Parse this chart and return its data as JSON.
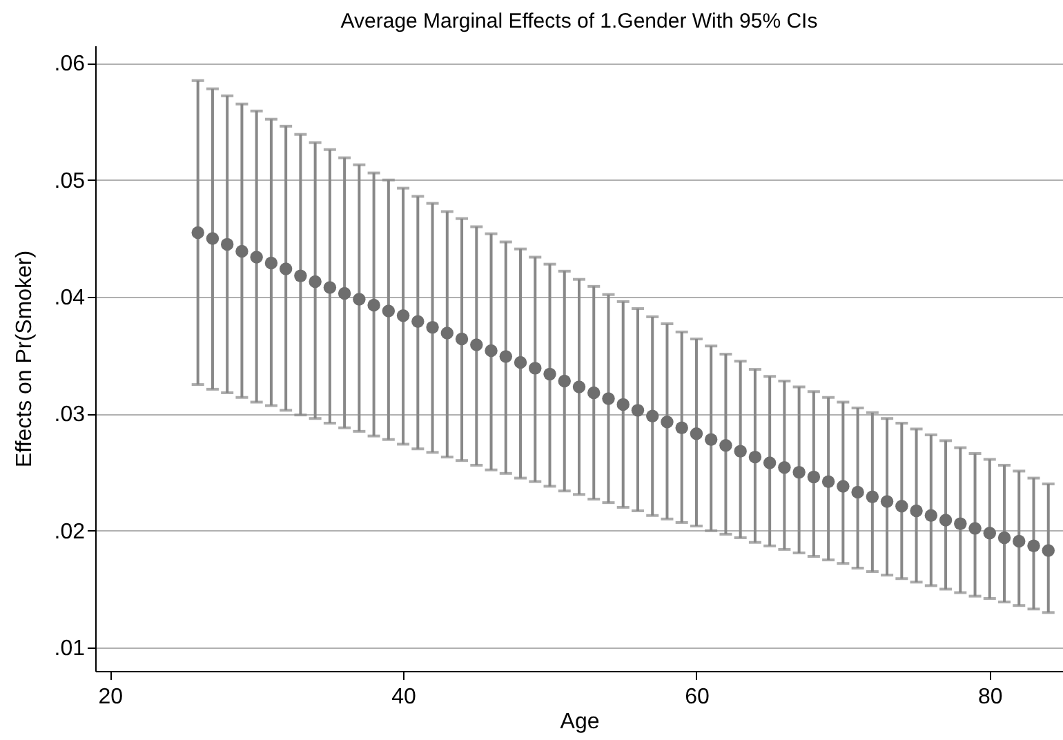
{
  "chart_data": {
    "type": "scatter",
    "title": "Average Marginal Effects of 1.Gender With 95% CIs",
    "xlabel": "Age",
    "ylabel": "Effects on Pr(Smoker)",
    "x": [
      26,
      27,
      28,
      29,
      30,
      31,
      32,
      33,
      34,
      35,
      36,
      37,
      38,
      39,
      40,
      41,
      42,
      43,
      44,
      45,
      46,
      47,
      48,
      49,
      50,
      51,
      52,
      53,
      54,
      55,
      56,
      57,
      58,
      59,
      60,
      61,
      62,
      63,
      64,
      65,
      66,
      67,
      68,
      69,
      70,
      71,
      72,
      73,
      74,
      75,
      76,
      77,
      78,
      79,
      80,
      81,
      82,
      83,
      84
    ],
    "series": [
      {
        "color": "#6e6e6e",
        "values": [
          0.0455,
          0.045,
          0.0445,
          0.0439,
          0.0434,
          0.0429,
          0.0424,
          0.0418,
          0.0413,
          0.0408,
          0.0403,
          0.0398,
          0.0393,
          0.0388,
          0.0384,
          0.0379,
          0.0374,
          0.0369,
          0.0364,
          0.0359,
          0.0354,
          0.0349,
          0.0344,
          0.0339,
          0.0334,
          0.0328,
          0.0323,
          0.0318,
          0.0313,
          0.0308,
          0.0303,
          0.0298,
          0.0293,
          0.0288,
          0.0283,
          0.0278,
          0.0273,
          0.0268,
          0.0263,
          0.0258,
          0.0254,
          0.025,
          0.0246,
          0.0242,
          0.0238,
          0.0233,
          0.0229,
          0.0225,
          0.0221,
          0.0217,
          0.0213,
          0.0209,
          0.0206,
          0.0202,
          0.0198,
          0.0194,
          0.0191,
          0.0187,
          0.0183
        ],
        "errors": [
          [
            0.0325,
            0.0585
          ],
          [
            0.0321,
            0.0578
          ],
          [
            0.0318,
            0.0572
          ],
          [
            0.0314,
            0.0565
          ],
          [
            0.031,
            0.0559
          ],
          [
            0.0307,
            0.0552
          ],
          [
            0.0303,
            0.0546
          ],
          [
            0.0299,
            0.0539
          ],
          [
            0.0296,
            0.0532
          ],
          [
            0.0292,
            0.0526
          ],
          [
            0.0288,
            0.0519
          ],
          [
            0.0285,
            0.0513
          ],
          [
            0.0281,
            0.0506
          ],
          [
            0.0278,
            0.05
          ],
          [
            0.0274,
            0.0493
          ],
          [
            0.027,
            0.0486
          ],
          [
            0.0267,
            0.048
          ],
          [
            0.0263,
            0.0473
          ],
          [
            0.026,
            0.0467
          ],
          [
            0.0256,
            0.046
          ],
          [
            0.0252,
            0.0454
          ],
          [
            0.0249,
            0.0447
          ],
          [
            0.0245,
            0.0441
          ],
          [
            0.0242,
            0.0434
          ],
          [
            0.0238,
            0.0428
          ],
          [
            0.0234,
            0.0422
          ],
          [
            0.0231,
            0.0415
          ],
          [
            0.0227,
            0.0409
          ],
          [
            0.0224,
            0.0402
          ],
          [
            0.022,
            0.0396
          ],
          [
            0.0217,
            0.039
          ],
          [
            0.0213,
            0.0383
          ],
          [
            0.021,
            0.0377
          ],
          [
            0.0207,
            0.037
          ],
          [
            0.0204,
            0.0364
          ],
          [
            0.02,
            0.0358
          ],
          [
            0.0197,
            0.0351
          ],
          [
            0.0194,
            0.0345
          ],
          [
            0.019,
            0.0338
          ],
          [
            0.0187,
            0.0332
          ],
          [
            0.0184,
            0.0328
          ],
          [
            0.0181,
            0.0323
          ],
          [
            0.0178,
            0.0319
          ],
          [
            0.0175,
            0.0314
          ],
          [
            0.0172,
            0.031
          ],
          [
            0.0168,
            0.0305
          ],
          [
            0.0165,
            0.0301
          ],
          [
            0.0162,
            0.0296
          ],
          [
            0.0159,
            0.0292
          ],
          [
            0.0156,
            0.0287
          ],
          [
            0.0153,
            0.0282
          ],
          [
            0.015,
            0.0277
          ],
          [
            0.0147,
            0.0271
          ],
          [
            0.0144,
            0.0266
          ],
          [
            0.0142,
            0.0261
          ],
          [
            0.0139,
            0.0256
          ],
          [
            0.0136,
            0.0251
          ],
          [
            0.0133,
            0.0245
          ],
          [
            0.013,
            0.024
          ]
        ]
      }
    ],
    "marker": "circle",
    "grid": "y",
    "xlim": [
      19,
      85
    ],
    "xticks": [
      20,
      40,
      60,
      80
    ],
    "ylim": [
      0.008,
      0.0615
    ],
    "yticks": [
      {
        "value": 0.01,
        "label": ".01"
      },
      {
        "value": 0.02,
        "label": ".02"
      },
      {
        "value": 0.03,
        "label": ".03"
      },
      {
        "value": 0.04,
        "label": ".04"
      },
      {
        "value": 0.05,
        "label": ".05"
      },
      {
        "value": 0.06,
        "label": ".06"
      }
    ]
  }
}
